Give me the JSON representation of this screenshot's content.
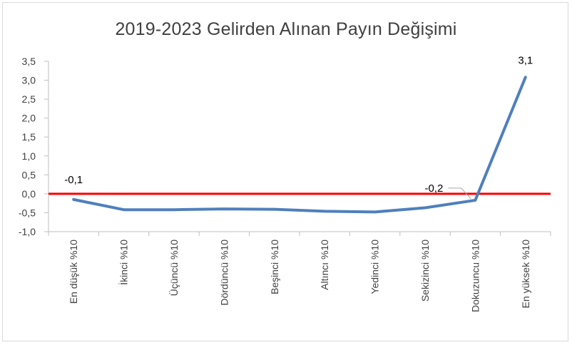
{
  "chart_data": {
    "type": "line",
    "title": "2019-2023 Gelirden Alınan Payın Değişimi",
    "categories": [
      "En düşük %10",
      "İkinci %10",
      "Üçüncü %10",
      "Dördüncü %10",
      "Beşinci %10",
      "Altıncı %10",
      "Yedinci %10",
      "Sekizinci %10",
      "Dokuzuncu %10",
      "En yüksek %10"
    ],
    "series": [
      {
        "values": [
          -0.15,
          -0.42,
          -0.42,
          -0.4,
          -0.41,
          -0.46,
          -0.48,
          -0.37,
          -0.17,
          3.08
        ],
        "color": "#4f7fbd"
      }
    ],
    "y_ticks": [
      "3,5",
      "3,0",
      "2,5",
      "2,0",
      "1,5",
      "1,0",
      "0,5",
      "0,0",
      "-0,5",
      "-1,0"
    ],
    "y_tick_values": [
      3.5,
      3.0,
      2.5,
      2.0,
      1.5,
      1.0,
      0.5,
      0.0,
      -0.5,
      -1.0
    ],
    "ylim": [
      -1.0,
      3.5
    ],
    "reference_line": {
      "value": 0.0,
      "color": "#ff0000"
    },
    "data_labels": [
      {
        "index": 0,
        "text": "-0,1"
      },
      {
        "index": 8,
        "text": "-0,2",
        "leader_line": true
      },
      {
        "index": 9,
        "text": "3,1"
      }
    ],
    "grid": false,
    "legend": "none"
  }
}
